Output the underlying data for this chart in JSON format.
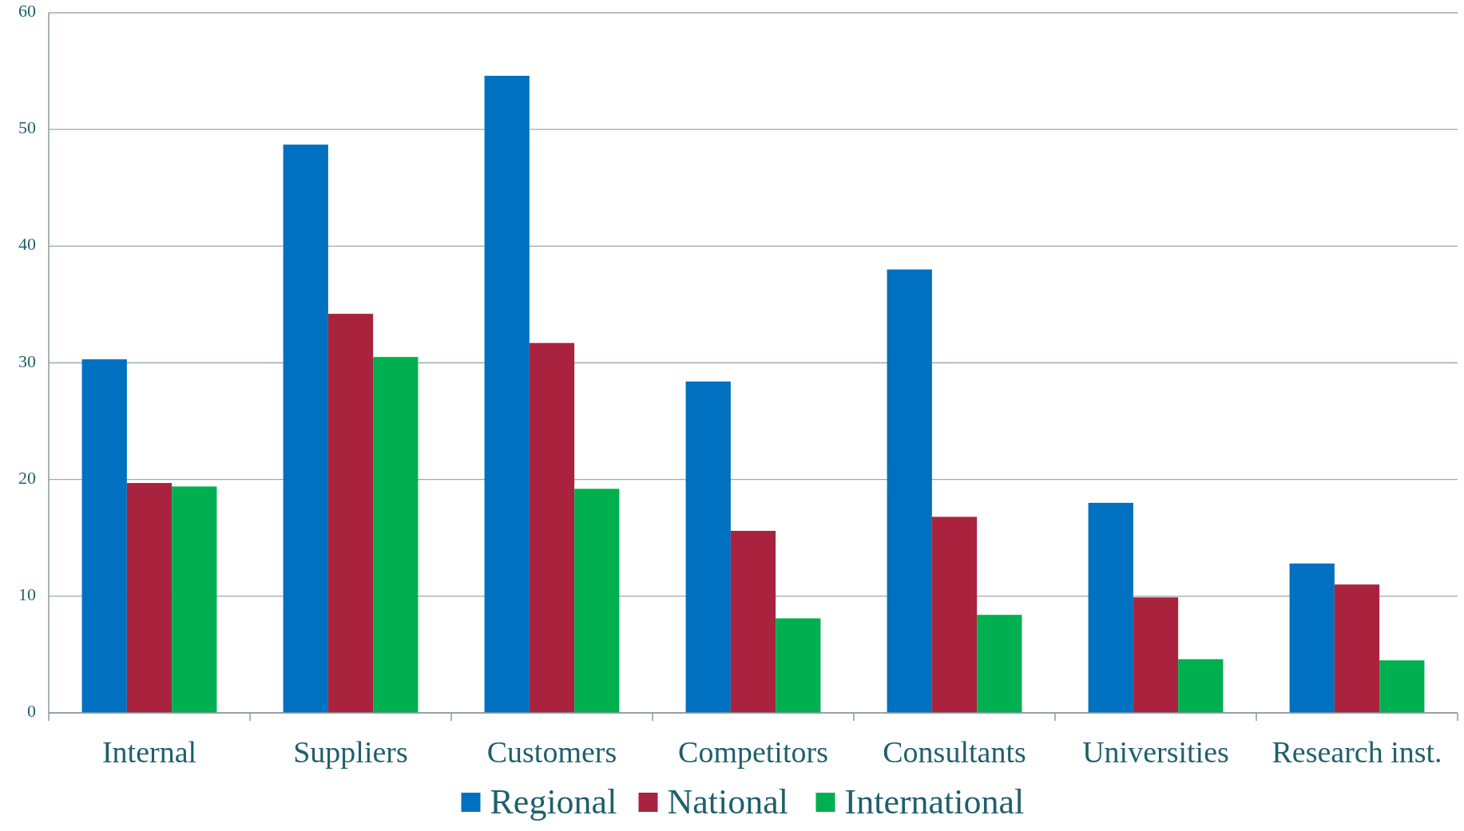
{
  "chart_data": {
    "type": "bar",
    "categories": [
      "Internal",
      "Suppliers",
      "Customers",
      "Competitors",
      "Consultants",
      "Universities",
      "Research inst."
    ],
    "series": [
      {
        "name": "Regional",
        "color": "#0070c0",
        "values": [
          30.3,
          48.7,
          54.6,
          28.4,
          38.0,
          18.0,
          12.8
        ]
      },
      {
        "name": "National",
        "color": "#a9233f",
        "values": [
          19.7,
          34.2,
          31.7,
          15.6,
          16.8,
          9.9,
          11.0
        ]
      },
      {
        "name": "International",
        "color": "#00b050",
        "values": [
          19.4,
          30.5,
          19.2,
          8.1,
          8.4,
          4.6,
          4.5
        ]
      }
    ],
    "ylim": [
      0,
      60
    ],
    "yticks": [
      0,
      10,
      20,
      30,
      40,
      50,
      60
    ],
    "grid": "y",
    "legend": "bottom"
  }
}
